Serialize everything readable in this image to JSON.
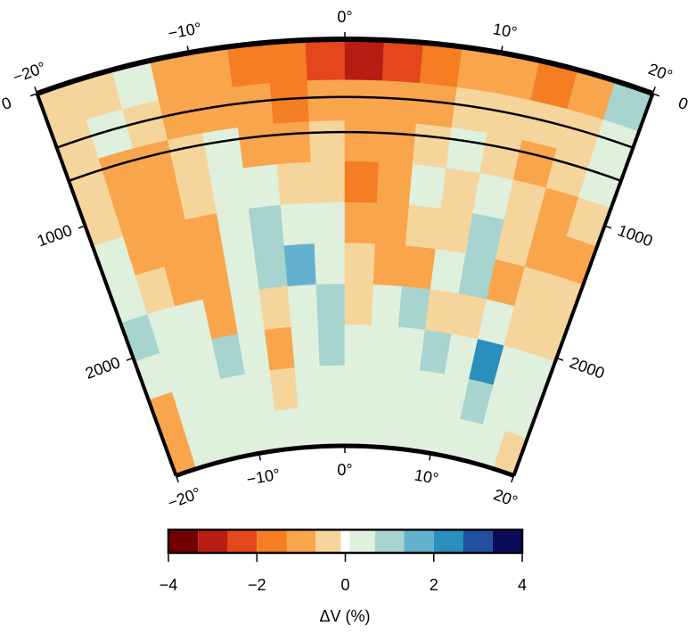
{
  "chart_data": {
    "type": "polar-section",
    "colorbar_label": "ΔV (%)",
    "angle_edges": [
      -20,
      -17.5,
      -15,
      -12.5,
      -10,
      -7.5,
      -5,
      -2.5,
      0,
      2.5,
      5,
      7.5,
      10,
      12.5,
      15,
      17.5,
      20
    ],
    "depth_edges": [
      0,
      290,
      580,
      870,
      1160,
      1450,
      1740,
      2030,
      2320,
      2610,
      2890
    ],
    "values": [
      [
        -0.3,
        -0.5,
        0.3,
        -0.8,
        -1.2,
        -1.5,
        -2.0,
        -2.5,
        -3.0,
        -2.5,
        -1.5,
        -0.8,
        -1.2,
        -1.8,
        -1.0,
        1.2
      ],
      [
        -0.5,
        0.2,
        -0.5,
        -1.0,
        -0.8,
        -1.2,
        -1.5,
        -1.2,
        -1.0,
        -1.2,
        -0.8,
        -0.5,
        -0.6,
        -0.5,
        -0.3,
        0.5
      ],
      [
        -0.5,
        -1.2,
        -1.0,
        -0.3,
        0.2,
        -1.2,
        -1.0,
        -0.6,
        -1.0,
        -1.3,
        -0.3,
        0.3,
        -0.6,
        -0.8,
        -0.4,
        0.3
      ],
      [
        -0.6,
        -1.2,
        -1.2,
        -0.5,
        0.3,
        0.2,
        -0.4,
        -0.5,
        -1.5,
        -1.2,
        0.2,
        -0.6,
        0.3,
        -0.6,
        -1.0,
        -0.5
      ],
      [
        0.2,
        -1.0,
        -1.3,
        -1.0,
        0.3,
        1.0,
        0.6,
        0.2,
        -1.3,
        -1.2,
        -0.6,
        -0.5,
        1.0,
        -0.3,
        -1.0,
        -1.0
      ],
      [
        0.3,
        -0.6,
        -1.2,
        -1.3,
        0.2,
        1.3,
        1.5,
        0.4,
        -0.6,
        -0.8,
        -1.0,
        0.2,
        0.8,
        -0.8,
        -0.6,
        -0.6
      ],
      [
        0.8,
        0.3,
        0.2,
        -1.0,
        0.2,
        -0.6,
        0.5,
        0.8,
        -0.3,
        0.3,
        0.8,
        -0.3,
        -0.6,
        0.5,
        -0.5,
        -0.3
      ],
      [
        0.3,
        0.5,
        0.6,
        1.0,
        0.2,
        -0.8,
        0.3,
        1.2,
        0.5,
        0.3,
        0.6,
        0.8,
        0.5,
        2.5,
        0.6,
        0.2
      ],
      [
        -1.0,
        0.3,
        0.2,
        0.5,
        0.6,
        -0.5,
        0.3,
        0.6,
        0.3,
        0.4,
        0.2,
        0.3,
        0.5,
        1.2,
        0.3,
        0.2
      ],
      [
        -1.2,
        0.2,
        0.3,
        0.2,
        0.3,
        0.2,
        0.3,
        0.5,
        0.2,
        0.3,
        0.2,
        0.3,
        0.4,
        0.3,
        0.2,
        -0.6
      ]
    ],
    "xlim": [
      -20,
      20
    ],
    "xticks": [
      {
        "value": -20,
        "label": "−20°"
      },
      {
        "value": -10,
        "label": "−10°"
      },
      {
        "value": 0,
        "label": "0°"
      },
      {
        "value": 10,
        "label": "10°"
      },
      {
        "value": 20,
        "label": "20°"
      }
    ],
    "ylim": [
      0,
      2890
    ],
    "yticks": [
      0,
      1000,
      2000
    ],
    "discontinuities": [
      410,
      660
    ],
    "colormap": {
      "bounds": [
        -4,
        -3.33,
        -2.67,
        -2,
        -1.33,
        -0.67,
        -0.1,
        0.1,
        0.67,
        1.33,
        2,
        2.67,
        3.33,
        4
      ],
      "colors": [
        "#730000",
        "#b81d13",
        "#e5461c",
        "#f57d22",
        "#f9a54c",
        "#f6d59c",
        "#ffffff",
        "#dff0dc",
        "#a8d4d0",
        "#63b1cf",
        "#2a8fbd",
        "#2150a0",
        "#0b0b5c"
      ]
    },
    "colorbar_ticks": [
      {
        "value": -4,
        "label": "−4"
      },
      {
        "value": -2,
        "label": "−2"
      },
      0,
      2,
      4
    ]
  }
}
